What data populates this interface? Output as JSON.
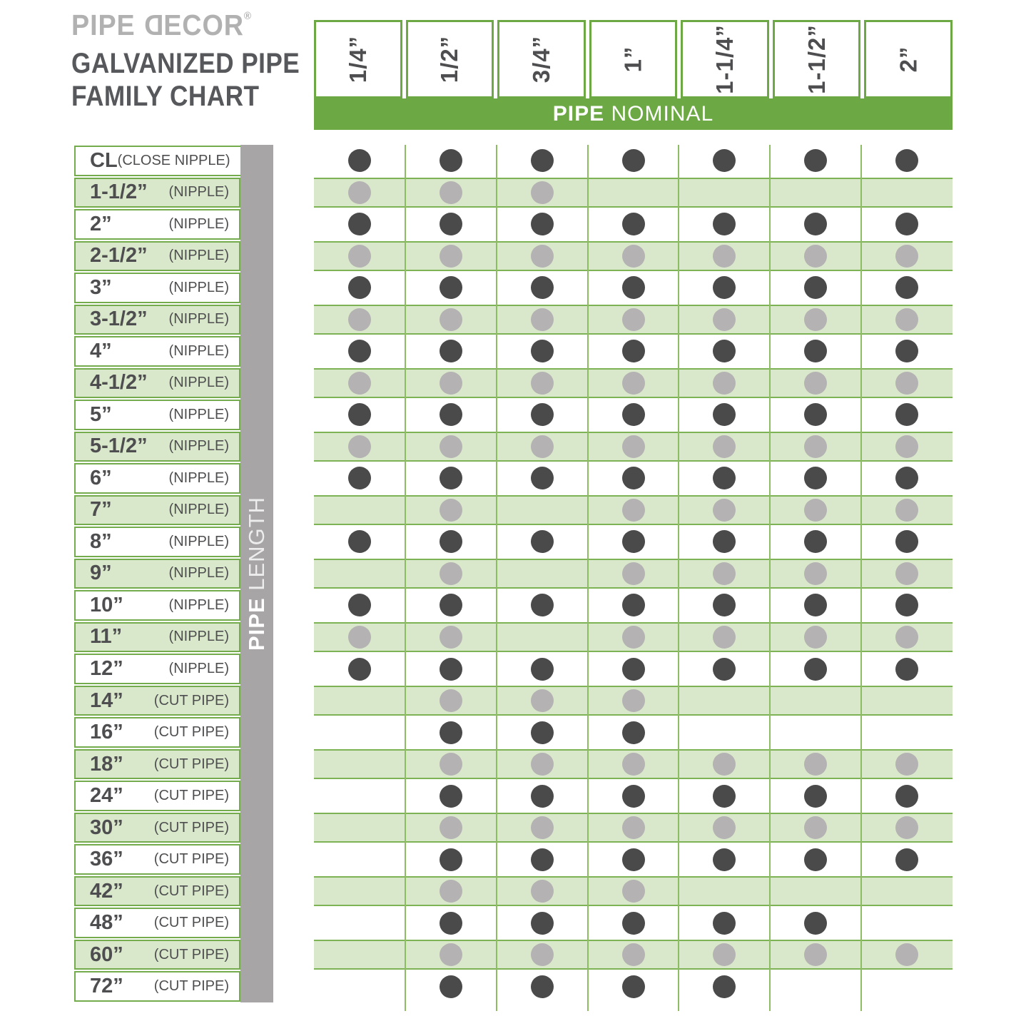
{
  "brand": {
    "logo_pre": "PIPE ",
    "logo_mirrored_letter": "D",
    "logo_post": "ECOR",
    "logo_registered": "®",
    "title_line1": "GALVANIZED PIPE",
    "title_line2": "FAMILY CHART"
  },
  "axes": {
    "column_header_bold": "PIPE",
    "column_header_rest": " NOMINAL",
    "row_header_bold": "PIPE",
    "row_header_rest": " LENGTH"
  },
  "colors": {
    "accent": "#6CA844",
    "cell-border": "#74AB4D",
    "band": "#D9E8CA",
    "band-border": "#7EB355",
    "grid": "#8CBD63",
    "dot-dark": "#4A4A4A",
    "dot-light": "#B4B2B3",
    "graybar": "#A7A5A6",
    "text-dark": "#4E4E50",
    "logo-gray": "#B2B1B1",
    "title-gray": "#57585B"
  },
  "chart_data": {
    "type": "table",
    "title": "PIPE DECOR® GALVANIZED PIPE FAMILY CHART",
    "column_axis_label": "PIPE NOMINAL",
    "row_axis_label": "PIPE LENGTH",
    "columns": [
      "1/4”",
      "1/2”",
      "3/4”",
      "1”",
      "1-1/4”",
      "1-1/2”",
      "2”"
    ],
    "rows": [
      {
        "length": "CL",
        "note": "(CLOSE NIPPLE)",
        "dots": [
          1,
          1,
          1,
          1,
          1,
          1,
          1
        ]
      },
      {
        "length": "1-1/2”",
        "note": "(NIPPLE)",
        "dots": [
          1,
          1,
          1,
          0,
          0,
          0,
          0
        ]
      },
      {
        "length": "2”",
        "note": "(NIPPLE)",
        "dots": [
          1,
          1,
          1,
          1,
          1,
          1,
          1
        ]
      },
      {
        "length": "2-1/2”",
        "note": "(NIPPLE)",
        "dots": [
          1,
          1,
          1,
          1,
          1,
          1,
          1
        ]
      },
      {
        "length": "3”",
        "note": "(NIPPLE)",
        "dots": [
          1,
          1,
          1,
          1,
          1,
          1,
          1
        ]
      },
      {
        "length": "3-1/2”",
        "note": "(NIPPLE)",
        "dots": [
          1,
          1,
          1,
          1,
          1,
          1,
          1
        ]
      },
      {
        "length": "4”",
        "note": "(NIPPLE)",
        "dots": [
          1,
          1,
          1,
          1,
          1,
          1,
          1
        ]
      },
      {
        "length": "4-1/2”",
        "note": "(NIPPLE)",
        "dots": [
          1,
          1,
          1,
          1,
          1,
          1,
          1
        ]
      },
      {
        "length": "5”",
        "note": "(NIPPLE)",
        "dots": [
          1,
          1,
          1,
          1,
          1,
          1,
          1
        ]
      },
      {
        "length": "5-1/2”",
        "note": "(NIPPLE)",
        "dots": [
          1,
          1,
          1,
          1,
          1,
          1,
          1
        ]
      },
      {
        "length": "6”",
        "note": "(NIPPLE)",
        "dots": [
          1,
          1,
          1,
          1,
          1,
          1,
          1
        ]
      },
      {
        "length": "7”",
        "note": "(NIPPLE)",
        "dots": [
          0,
          1,
          0,
          1,
          1,
          1,
          1
        ]
      },
      {
        "length": "8”",
        "note": "(NIPPLE)",
        "dots": [
          1,
          1,
          1,
          1,
          1,
          1,
          1
        ]
      },
      {
        "length": "9”",
        "note": "(NIPPLE)",
        "dots": [
          0,
          1,
          0,
          1,
          1,
          1,
          1
        ]
      },
      {
        "length": "10”",
        "note": "(NIPPLE)",
        "dots": [
          1,
          1,
          1,
          1,
          1,
          1,
          1
        ]
      },
      {
        "length": "11”",
        "note": "(NIPPLE)",
        "dots": [
          1,
          1,
          0,
          1,
          1,
          1,
          1
        ]
      },
      {
        "length": "12”",
        "note": "(NIPPLE)",
        "dots": [
          1,
          1,
          1,
          1,
          1,
          1,
          1
        ]
      },
      {
        "length": "14”",
        "note": "(CUT PIPE)",
        "dots": [
          0,
          1,
          1,
          1,
          0,
          0,
          0
        ]
      },
      {
        "length": "16”",
        "note": "(CUT PIPE)",
        "dots": [
          0,
          1,
          1,
          1,
          0,
          0,
          0
        ]
      },
      {
        "length": "18”",
        "note": "(CUT PIPE)",
        "dots": [
          0,
          1,
          1,
          1,
          1,
          1,
          1
        ]
      },
      {
        "length": "24”",
        "note": "(CUT PIPE)",
        "dots": [
          0,
          1,
          1,
          1,
          1,
          1,
          1
        ]
      },
      {
        "length": "30”",
        "note": "(CUT PIPE)",
        "dots": [
          0,
          1,
          1,
          1,
          1,
          1,
          1
        ]
      },
      {
        "length": "36”",
        "note": "(CUT PIPE)",
        "dots": [
          0,
          1,
          1,
          1,
          1,
          1,
          1
        ]
      },
      {
        "length": "42”",
        "note": "(CUT PIPE)",
        "dots": [
          0,
          1,
          1,
          1,
          0,
          0,
          0
        ]
      },
      {
        "length": "48”",
        "note": "(CUT PIPE)",
        "dots": [
          0,
          1,
          1,
          1,
          1,
          1,
          0
        ]
      },
      {
        "length": "60”",
        "note": "(CUT PIPE)",
        "dots": [
          0,
          1,
          1,
          1,
          1,
          1,
          1
        ]
      },
      {
        "length": "72”",
        "note": "(CUT PIPE)",
        "dots": [
          0,
          1,
          1,
          1,
          1,
          0,
          0
        ]
      }
    ]
  }
}
